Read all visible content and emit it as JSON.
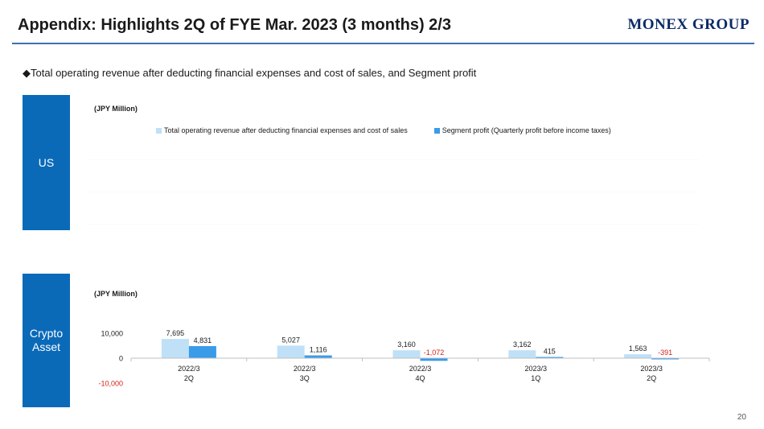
{
  "header": {
    "title": "Appendix: Highlights 2Q of FYE Mar. 2023 (3 months) 2/3",
    "logo": "MONEX GROUP"
  },
  "subtitle": "◆Total operating revenue after deducting financial expenses and cost of sales, and Segment profit",
  "segments": {
    "us_label": "US",
    "crypto_label_line1": "Crypto",
    "crypto_label_line2": "Asset"
  },
  "us_chart": {
    "unit": "(JPY Million)",
    "legend": [
      {
        "name": "Total operating revenue after deducting financial expenses and cost of sales",
        "color": "#bfe0f7"
      },
      {
        "name": "Segment profit (Quarterly profit before income taxes)",
        "color": "#3a9be8"
      }
    ]
  },
  "chart_data": {
    "type": "bar",
    "ylabel": "(JPY Million)",
    "categories": [
      [
        "2022/3",
        "2Q"
      ],
      [
        "2022/3",
        "3Q"
      ],
      [
        "2022/3",
        "4Q"
      ],
      [
        "2023/3",
        "1Q"
      ],
      [
        "2023/3",
        "2Q"
      ]
    ],
    "series": [
      {
        "name": "Total operating revenue after deducting financial expenses and cost of sales",
        "values": [
          7695,
          5027,
          3160,
          3162,
          1563
        ],
        "labels": [
          "7,695",
          "5,027",
          "3,160",
          "3,162",
          "1,563"
        ]
      },
      {
        "name": "Segment profit (Quarterly profit before income taxes)",
        "values": [
          4831,
          1116,
          -1072,
          415,
          -391
        ],
        "labels": [
          "4,831",
          "1,116",
          "-1,072",
          "415",
          "-391"
        ]
      }
    ],
    "ylim": [
      -10000,
      10000
    ],
    "yticks": [
      {
        "value": 10000,
        "label": "10,000"
      },
      {
        "value": 0,
        "label": "0"
      },
      {
        "value": -10000,
        "label": "-10,000"
      }
    ],
    "colors": {
      "revenue": "#bfe0f7",
      "profit": "#3a9be8",
      "negative_text": "#d0201a",
      "axis": "#bfbfbf"
    }
  },
  "page_number": "20"
}
